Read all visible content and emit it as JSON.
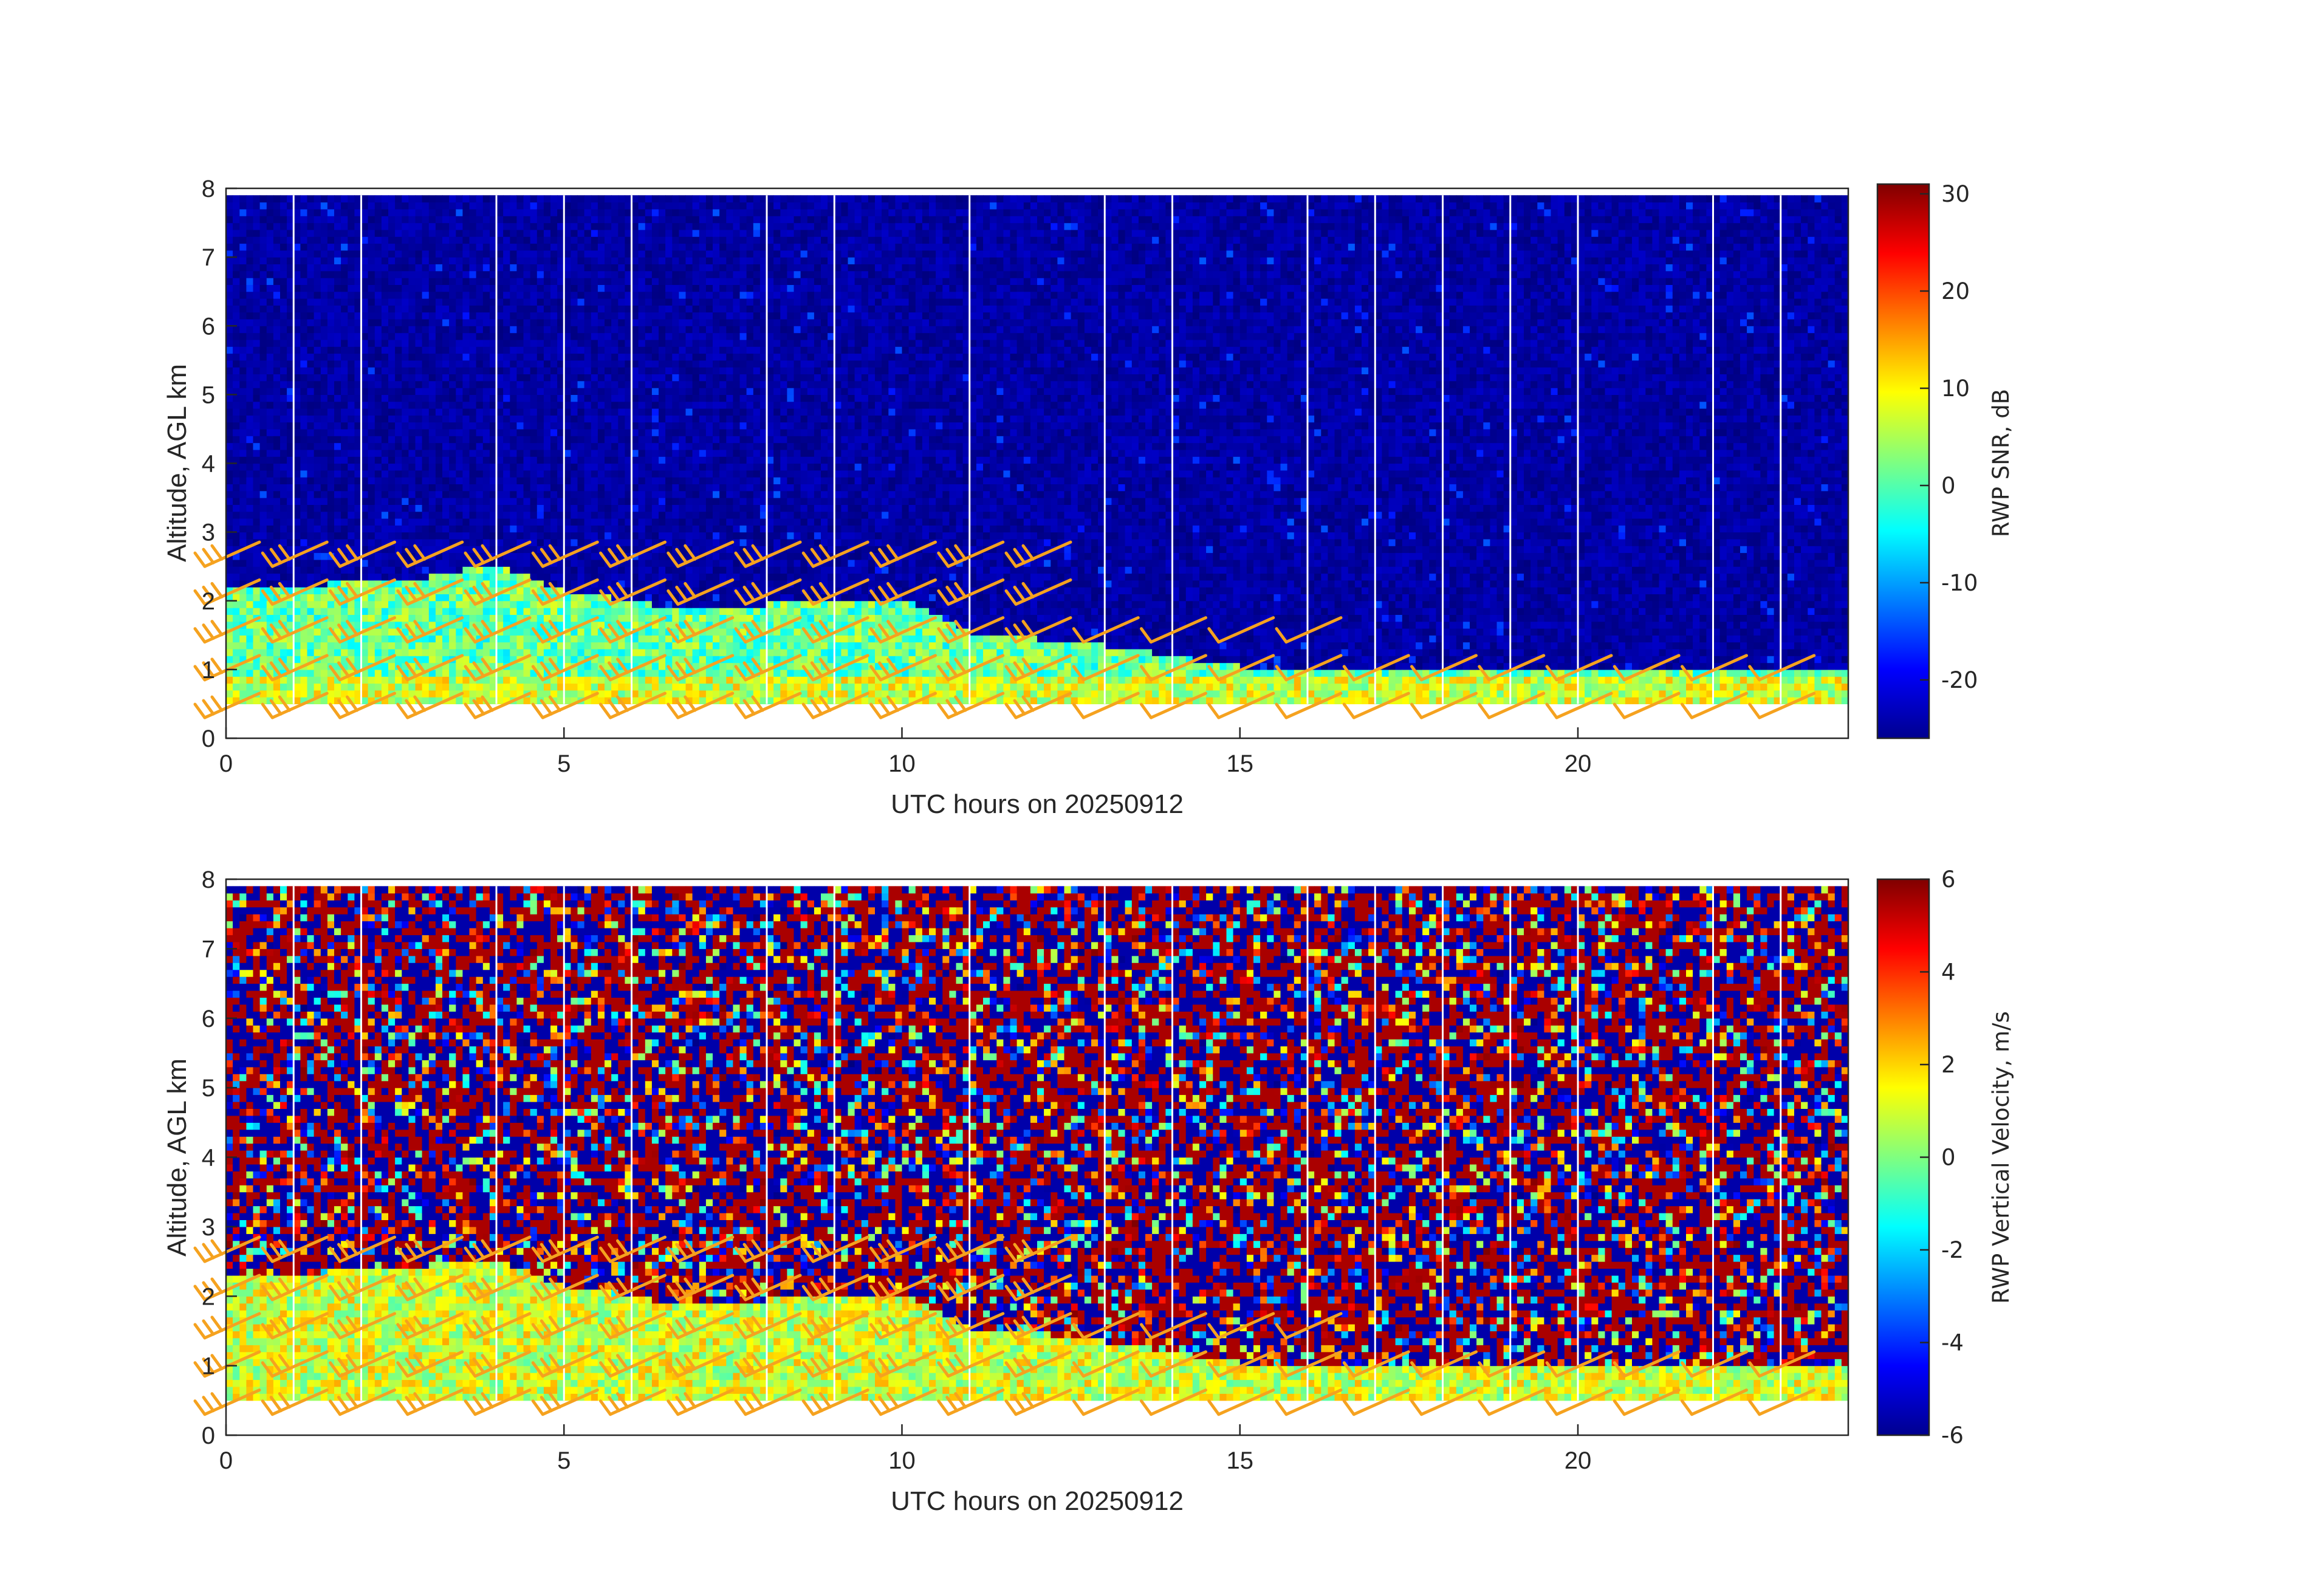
{
  "chart_data": [
    {
      "type": "heatmap",
      "title": "",
      "xlabel": "UTC hours on 20250912",
      "ylabel": "Altitude, AGL km",
      "xlim": [
        0,
        24
      ],
      "ylim": [
        0,
        8
      ],
      "xticks": [
        0,
        5,
        10,
        15,
        20
      ],
      "yticks": [
        0,
        1,
        2,
        3,
        4,
        5,
        6,
        7,
        8
      ],
      "colorbar": {
        "label": "RWP SNR, dB",
        "range": [
          -26,
          31
        ],
        "ticks": [
          -20,
          -10,
          0,
          10,
          20,
          30
        ],
        "colormap": "jet"
      },
      "field_description": {
        "background_value": -24,
        "boundary_layer_top_km": [
          [
            0,
            2.1
          ],
          [
            3,
            2.3
          ],
          [
            4,
            2.5
          ],
          [
            5,
            2.1
          ],
          [
            7,
            1.8
          ],
          [
            9,
            2.0
          ],
          [
            10,
            2.0
          ],
          [
            11,
            1.5
          ],
          [
            13,
            1.3
          ],
          [
            15,
            1.0
          ],
          [
            18,
            0.9
          ],
          [
            24,
            0.9
          ]
        ],
        "data_bottom_km": 0.5,
        "data_top_km": 7.9
      },
      "data_gaps_hours": [
        1,
        2,
        4,
        5,
        6,
        8,
        9,
        11,
        13,
        14,
        16,
        17,
        18,
        19,
        20,
        22,
        23
      ],
      "wind_barbs": {
        "color": "#f5a21f",
        "heights_km": [
          0.3,
          0.85,
          1.4,
          1.95,
          2.5
        ]
      }
    },
    {
      "type": "heatmap",
      "title": "",
      "xlabel": "UTC hours on 20250912",
      "ylabel": "Altitude, AGL km",
      "xlim": [
        0,
        24
      ],
      "ylim": [
        0,
        8
      ],
      "xticks": [
        0,
        5,
        10,
        15,
        20
      ],
      "yticks": [
        0,
        1,
        2,
        3,
        4,
        5,
        6,
        7,
        8
      ],
      "colorbar": {
        "label": "RWP Vertical Velocity, m/s",
        "range": [
          -6,
          6
        ],
        "ticks": [
          -6,
          -4,
          -2,
          0,
          2,
          4,
          6
        ],
        "colormap": "jet"
      },
      "field_description": {
        "background": "noise spanning -6 to 6",
        "boundary_layer_value": 1.0,
        "data_bottom_km": 0.5,
        "data_top_km": 7.9
      },
      "data_gaps_hours": [
        1,
        2,
        4,
        5,
        6,
        8,
        9,
        11,
        13,
        14,
        16,
        17,
        18,
        19,
        20,
        22,
        23
      ],
      "wind_barbs": {
        "color": "#f5a21f",
        "heights_km": [
          0.3,
          0.85,
          1.4,
          1.95,
          2.5
        ]
      }
    }
  ]
}
